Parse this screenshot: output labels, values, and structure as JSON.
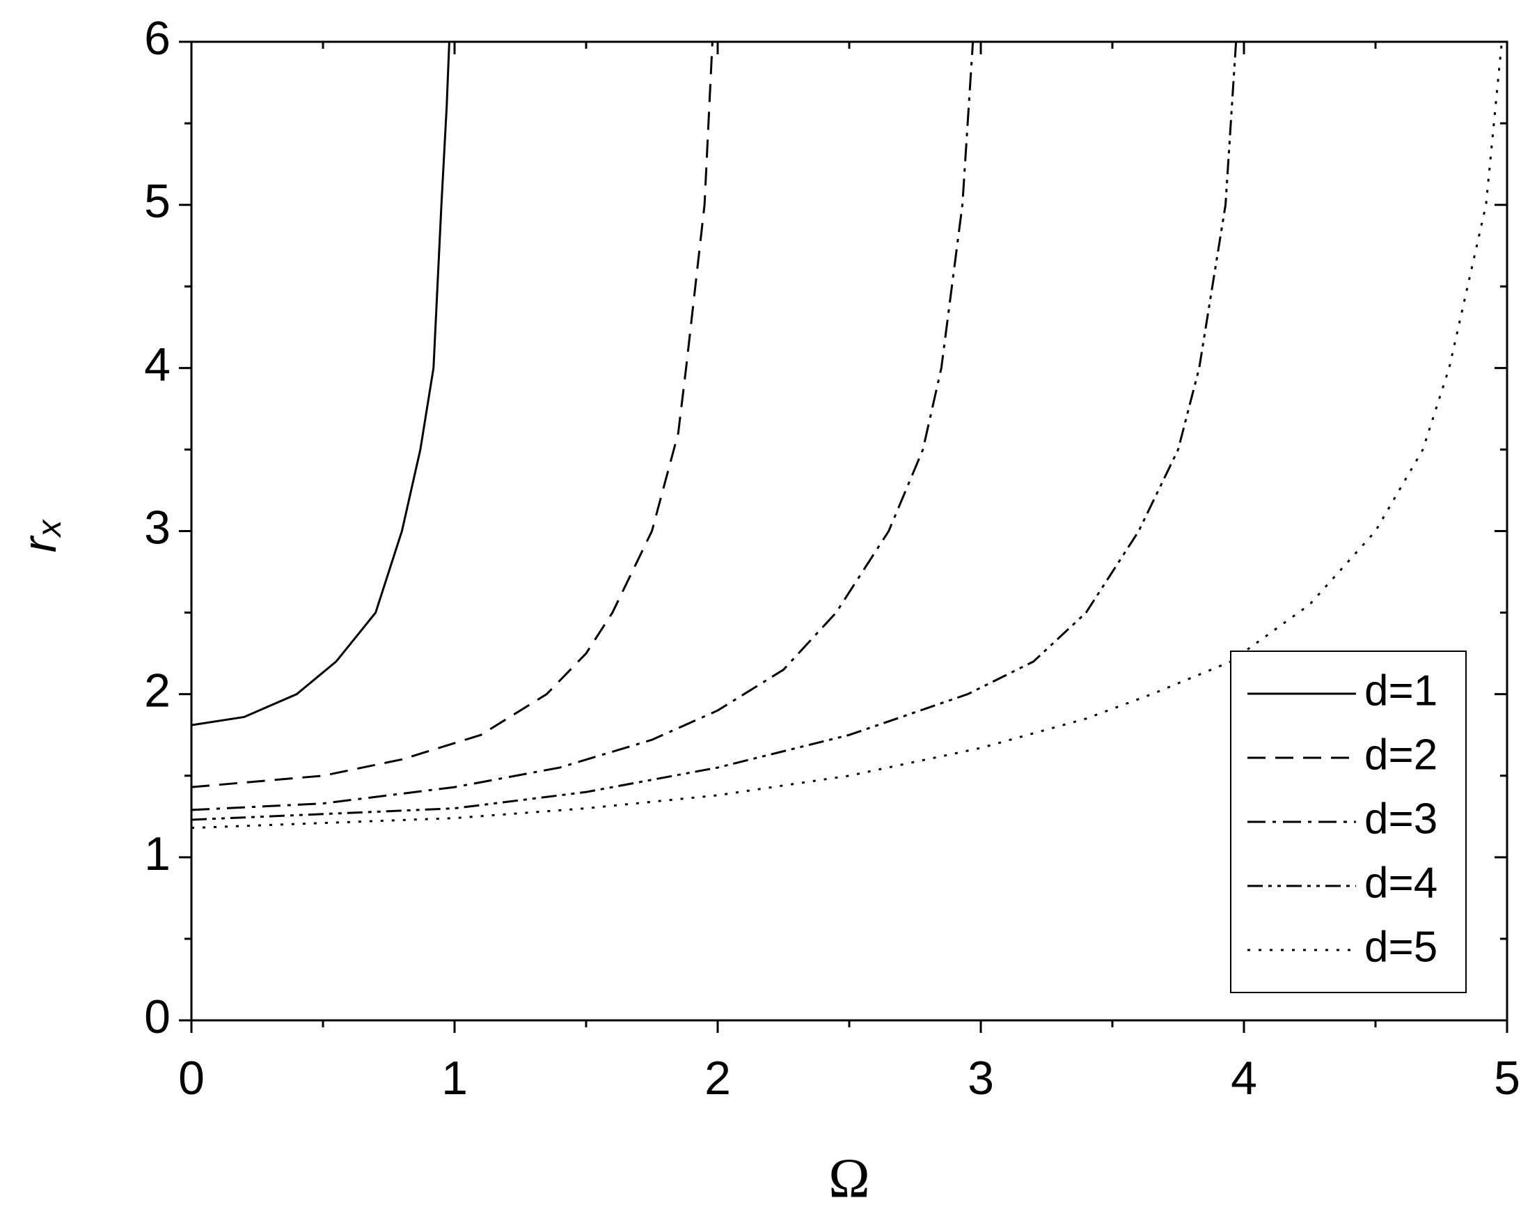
{
  "chart_data": {
    "type": "line",
    "xlabel": "Ω",
    "ylabel": {
      "text": "r",
      "subscript": "x"
    },
    "xlim": [
      0,
      5
    ],
    "ylim": [
      0,
      6
    ],
    "xticks": [
      0,
      1,
      2,
      3,
      4,
      5
    ],
    "yticks": [
      0,
      1,
      2,
      3,
      4,
      5,
      6
    ],
    "xminor": [
      0.5,
      1.5,
      2.5,
      3.5,
      4.5
    ],
    "yminor": [
      0.5,
      1.5,
      2.5,
      3.5,
      4.5,
      5.5
    ],
    "grid": false,
    "legend": "lower right",
    "series": [
      {
        "name": "d=1",
        "color": "#000000",
        "dash": "solid",
        "x": [
          0,
          0.2,
          0.4,
          0.55,
          0.7,
          0.8,
          0.87,
          0.92,
          0.95,
          0.97,
          0.98
        ],
        "values": [
          1.81,
          1.86,
          2.0,
          2.2,
          2.5,
          3.0,
          3.5,
          4.0,
          5.0,
          5.6,
          6.0
        ]
      },
      {
        "name": "d=2",
        "color": "#000000",
        "dash": "dash",
        "x": [
          0,
          0.5,
          0.8,
          1.1,
          1.35,
          1.5,
          1.6,
          1.75,
          1.85,
          1.88,
          1.95,
          1.98
        ],
        "values": [
          1.43,
          1.5,
          1.6,
          1.75,
          2.0,
          2.25,
          2.5,
          3.0,
          3.6,
          4.0,
          5.0,
          6.0
        ]
      },
      {
        "name": "d=3",
        "color": "#000000",
        "dash": "dashdot",
        "x": [
          0,
          0.5,
          1,
          1.4,
          1.75,
          2.0,
          2.25,
          2.45,
          2.65,
          2.78,
          2.85,
          2.93,
          2.97
        ],
        "values": [
          1.29,
          1.33,
          1.43,
          1.55,
          1.72,
          1.9,
          2.15,
          2.5,
          3.0,
          3.5,
          4.0,
          5.0,
          6.0
        ]
      },
      {
        "name": "d=4",
        "color": "#000000",
        "dash": "dashdotdot",
        "x": [
          0,
          1,
          1.5,
          2,
          2.5,
          2.95,
          3.2,
          3.4,
          3.6,
          3.75,
          3.83,
          3.93,
          3.97
        ],
        "values": [
          1.23,
          1.3,
          1.4,
          1.55,
          1.75,
          2.0,
          2.2,
          2.5,
          3.0,
          3.5,
          4.0,
          5.0,
          6.0
        ]
      },
      {
        "name": "d=5",
        "color": "#000000",
        "dash": "dot",
        "x": [
          0,
          1.0,
          1.5,
          2.0,
          2.5,
          3.0,
          3.4,
          3.65,
          3.95,
          4.25,
          4.5,
          4.68,
          4.78,
          4.92,
          4.98
        ],
        "values": [
          1.18,
          1.24,
          1.3,
          1.38,
          1.5,
          1.67,
          1.85,
          2.0,
          2.2,
          2.55,
          3.0,
          3.5,
          4.0,
          5.0,
          6.0
        ]
      }
    ]
  }
}
